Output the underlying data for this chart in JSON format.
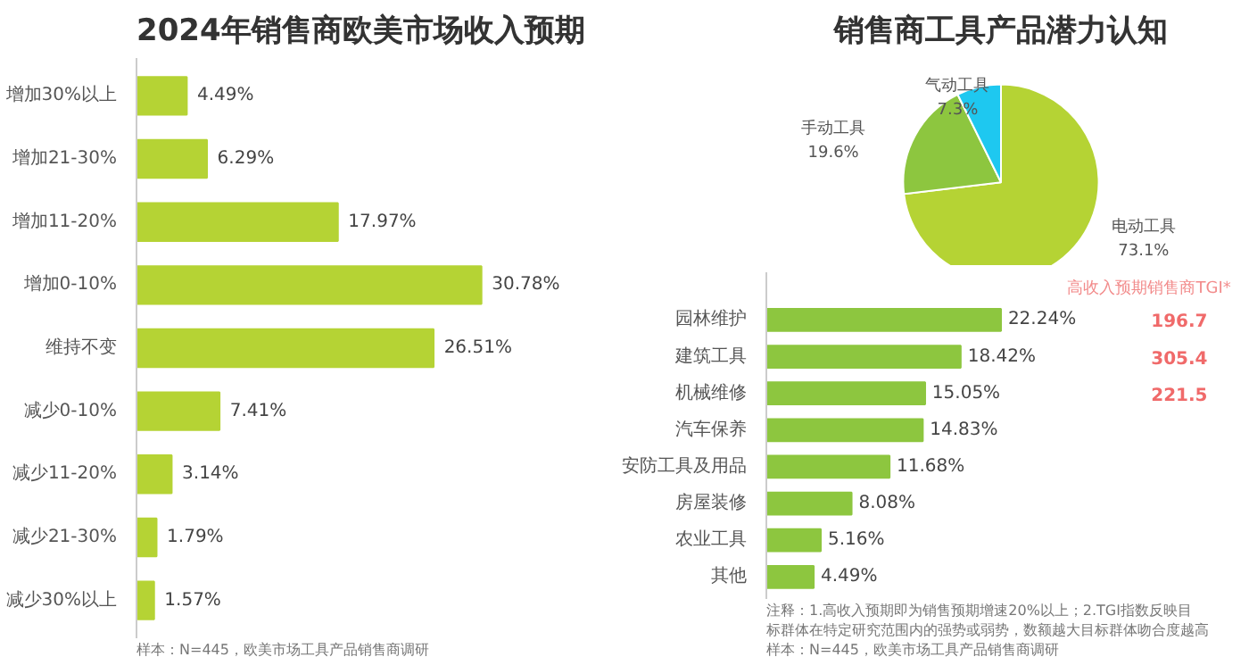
{
  "chart_data": [
    {
      "type": "bar",
      "orientation": "horizontal",
      "title": "2024年销售商欧美市场收入预期",
      "categories": [
        "增加30%以上",
        "增加21-30%",
        "增加11-20%",
        "增加0-10%",
        "维持不变",
        "减少0-10%",
        "减少11-20%",
        "减少21-30%",
        "减少30%以上"
      ],
      "values": [
        4.49,
        6.29,
        17.97,
        30.78,
        26.51,
        7.41,
        3.14,
        1.79,
        1.57
      ],
      "value_labels": [
        "4.49%",
        "6.29%",
        "17.97%",
        "30.78%",
        "26.51%",
        "7.41%",
        "3.14%",
        "1.79%",
        "1.57%"
      ],
      "color": "#b5d334",
      "annotations": [
        "样本：N=445，欧美市场工具产品销售商调研"
      ],
      "grid": false
    },
    {
      "type": "pie",
      "title": "销售商工具产品潜力认知",
      "categories": [
        "电动工具",
        "手动工具",
        "气动工具"
      ],
      "values": [
        73.1,
        19.6,
        7.3
      ],
      "value_labels": [
        "73.1%",
        "19.6%",
        "7.3%"
      ],
      "colors": [
        "#b5d334",
        "#8dc63f",
        "#1ec8f0"
      ]
    },
    {
      "type": "bar",
      "orientation": "horizontal",
      "categories": [
        "园林维护",
        "建筑工具",
        "机械维修",
        "汽车保养",
        "安防工具及用品",
        "房屋装修",
        "农业工具",
        "其他"
      ],
      "values": [
        22.24,
        18.42,
        15.05,
        14.83,
        11.68,
        8.08,
        5.16,
        4.49
      ],
      "value_labels": [
        "22.24%",
        "18.42%",
        "15.05%",
        "14.83%",
        "11.68%",
        "8.08%",
        "5.16%",
        "4.49%"
      ],
      "color": "#8dc63f",
      "annotations": [
        "高收入预期销售商TGI*",
        "196.7",
        "305.4",
        "221.5",
        "注释：1.高收入预期即为销售预期增速20%以上；2.TGI指数反映目标群体在特定研究范围内的强势或弱势，数额越大目标群体吻合度越高",
        "样本：N=445，欧美市场工具产品销售商调研"
      ],
      "grid": false
    }
  ]
}
